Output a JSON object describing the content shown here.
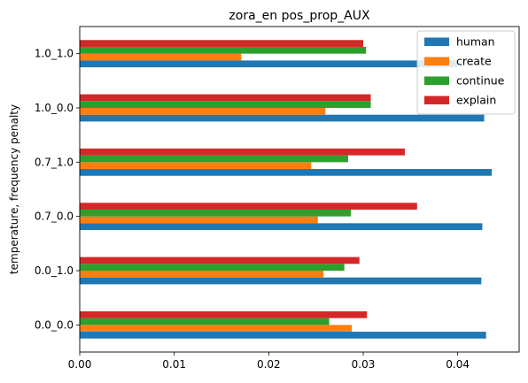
{
  "chart_data": {
    "type": "bar",
    "orientation": "horizontal",
    "title": "zora_en pos_prop_AUX",
    "ylabel": "temperature, frequency penalty",
    "xlabel": "",
    "categories": [
      "0.0_0.0",
      "0.0_1.0",
      "0.7_0.0",
      "0.7_1.0",
      "1.0_0.0",
      "1.0_1.0"
    ],
    "xlim": [
      0,
      0.0465
    ],
    "xticks": [
      "0.00",
      "0.01",
      "0.02",
      "0.03",
      "0.04"
    ],
    "grid": false,
    "legend_position": "top-right",
    "series": [
      {
        "name": "human",
        "color": "#1f77b4",
        "values": [
          0.043,
          0.0425,
          0.0426,
          0.0436,
          0.0428,
          0.04
        ]
      },
      {
        "name": "create",
        "color": "#ff7f0e",
        "values": [
          0.0288,
          0.0258,
          0.0252,
          0.0245,
          0.026,
          0.0171
        ]
      },
      {
        "name": "continue",
        "color": "#2ca02c",
        "values": [
          0.0264,
          0.028,
          0.0287,
          0.0284,
          0.0308,
          0.0303
        ]
      },
      {
        "name": "explain",
        "color": "#d62728",
        "values": [
          0.0304,
          0.0296,
          0.0357,
          0.0344,
          0.0308,
          0.03
        ]
      }
    ]
  }
}
